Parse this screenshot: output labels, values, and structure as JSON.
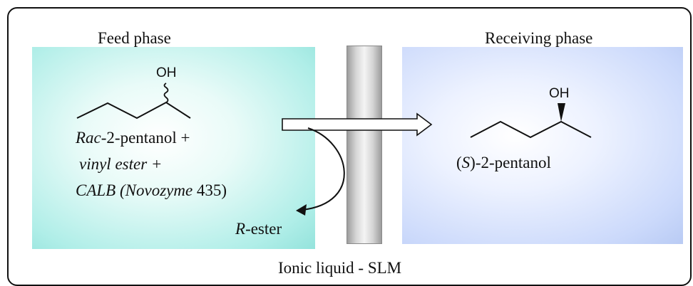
{
  "feed_phase": {
    "title": "Feed phase",
    "hydroxyl_label": "OH",
    "reagent_line1_italic": "Rac",
    "reagent_line1_rest": "-2-pentanol +",
    "reagent_line2": "vinyl ester +",
    "reagent_line3_italic": "CALB (Novozyme",
    "reagent_line3_rest": "435)",
    "product_italic": "R",
    "product_rest": "-ester"
  },
  "receiving_phase": {
    "title": "Receiving phase",
    "hydroxyl_label": "OH",
    "product_prefix": "(",
    "product_italic": "S",
    "product_rest": ")-2-pentanol"
  },
  "membrane": {
    "label": "Ionic liquid - SLM"
  },
  "colors": {
    "feed_box": "#94e3dc",
    "receiving_box": "#b9cbf4",
    "membrane": "#cfcfcf",
    "stroke": "#111111"
  }
}
